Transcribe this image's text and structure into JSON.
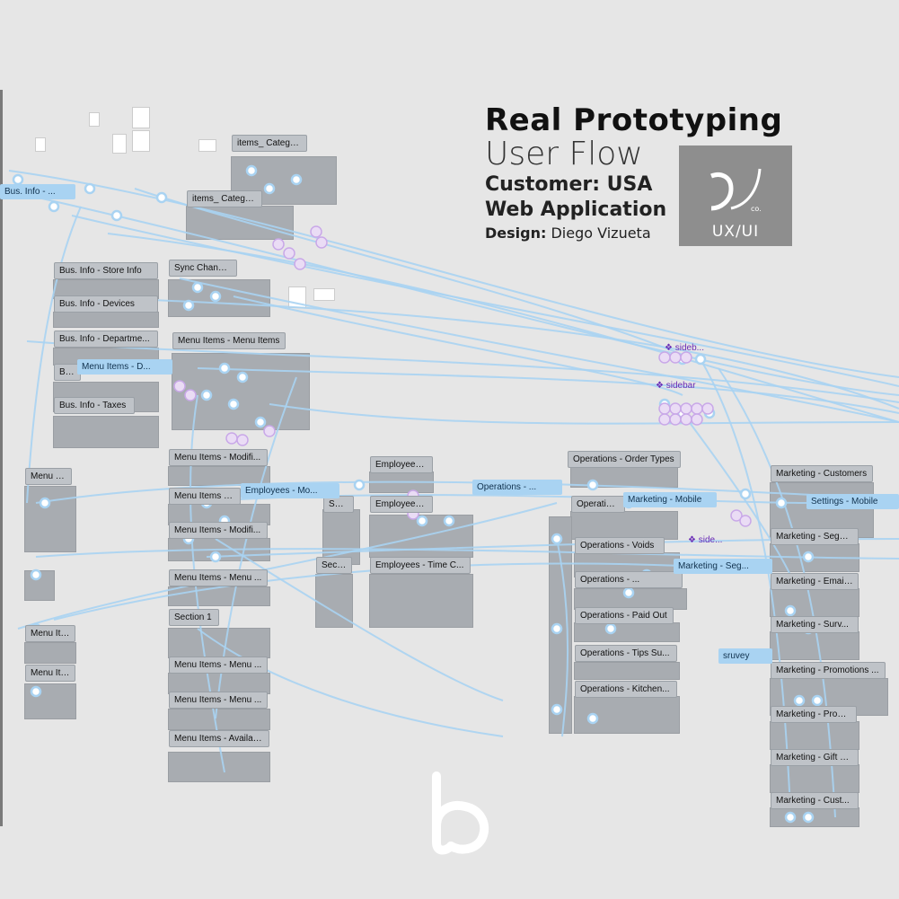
{
  "header": {
    "title": "Real Prototyping",
    "subtitle": "User Flow",
    "customer": "Customer: USA",
    "app_type": "Web Application",
    "design_label": "Design:",
    "designer": "Diego Vizueta"
  },
  "logo": {
    "caption": "UX/UI",
    "sub": "co."
  },
  "colors": {
    "background": "#e6e6e6",
    "flow_line": "#a9d3f2",
    "frame": "#a8acb1",
    "component": "#6a2bb6",
    "logo_box": "#8e8e8e"
  },
  "frame_labels": [
    "items_ Category",
    "items_ Category",
    "Bus. Info - Store Info",
    "Sync Changes",
    "Bus. Info - Devices",
    "Bus. Info - Departme...",
    "Menu Items - Menu Items",
    "Bus...",
    "Bus. Info - Taxes",
    "Menu Items - Modifi...",
    "Menu It...",
    "Menu Items - Ma...",
    "Menu Items - Modifi...",
    "Menu Items - Menu ...",
    "Section 1",
    "Menu Items - Menu ...",
    "Menu Items - Menu ...",
    "Menu Items - Availab...",
    "Menu Ite...",
    "Menu Ite...",
    "Employees - ...",
    "Employees - ...",
    "Sect...",
    "Sect...",
    "Employees - Time C...",
    "Operations - Order Types",
    "Operations ...",
    "Operations - Voids",
    "Operations - ...",
    "Operations - Paid Out",
    "Operations - Tips Su...",
    "Operations - Kitchen...",
    "Marketing - Customers",
    "Marketing - Segm...",
    "Marketing - Email...",
    "Marketing - Surv...",
    "Marketing - Promotions ...",
    "Marketing - Prom...",
    "Marketing - Gift C...",
    "Marketing - Cust..."
  ],
  "prototype_labels": [
    "Bus. Info - ...",
    "Menu Items - D...",
    "Employees - Mo...",
    "Operations - ...",
    "Marketing - Mobile",
    "Settings - Mobile",
    "Marketing - Seg...",
    "sruvey"
  ],
  "component_tags": [
    "sideb...",
    "sidebar",
    "side..."
  ]
}
